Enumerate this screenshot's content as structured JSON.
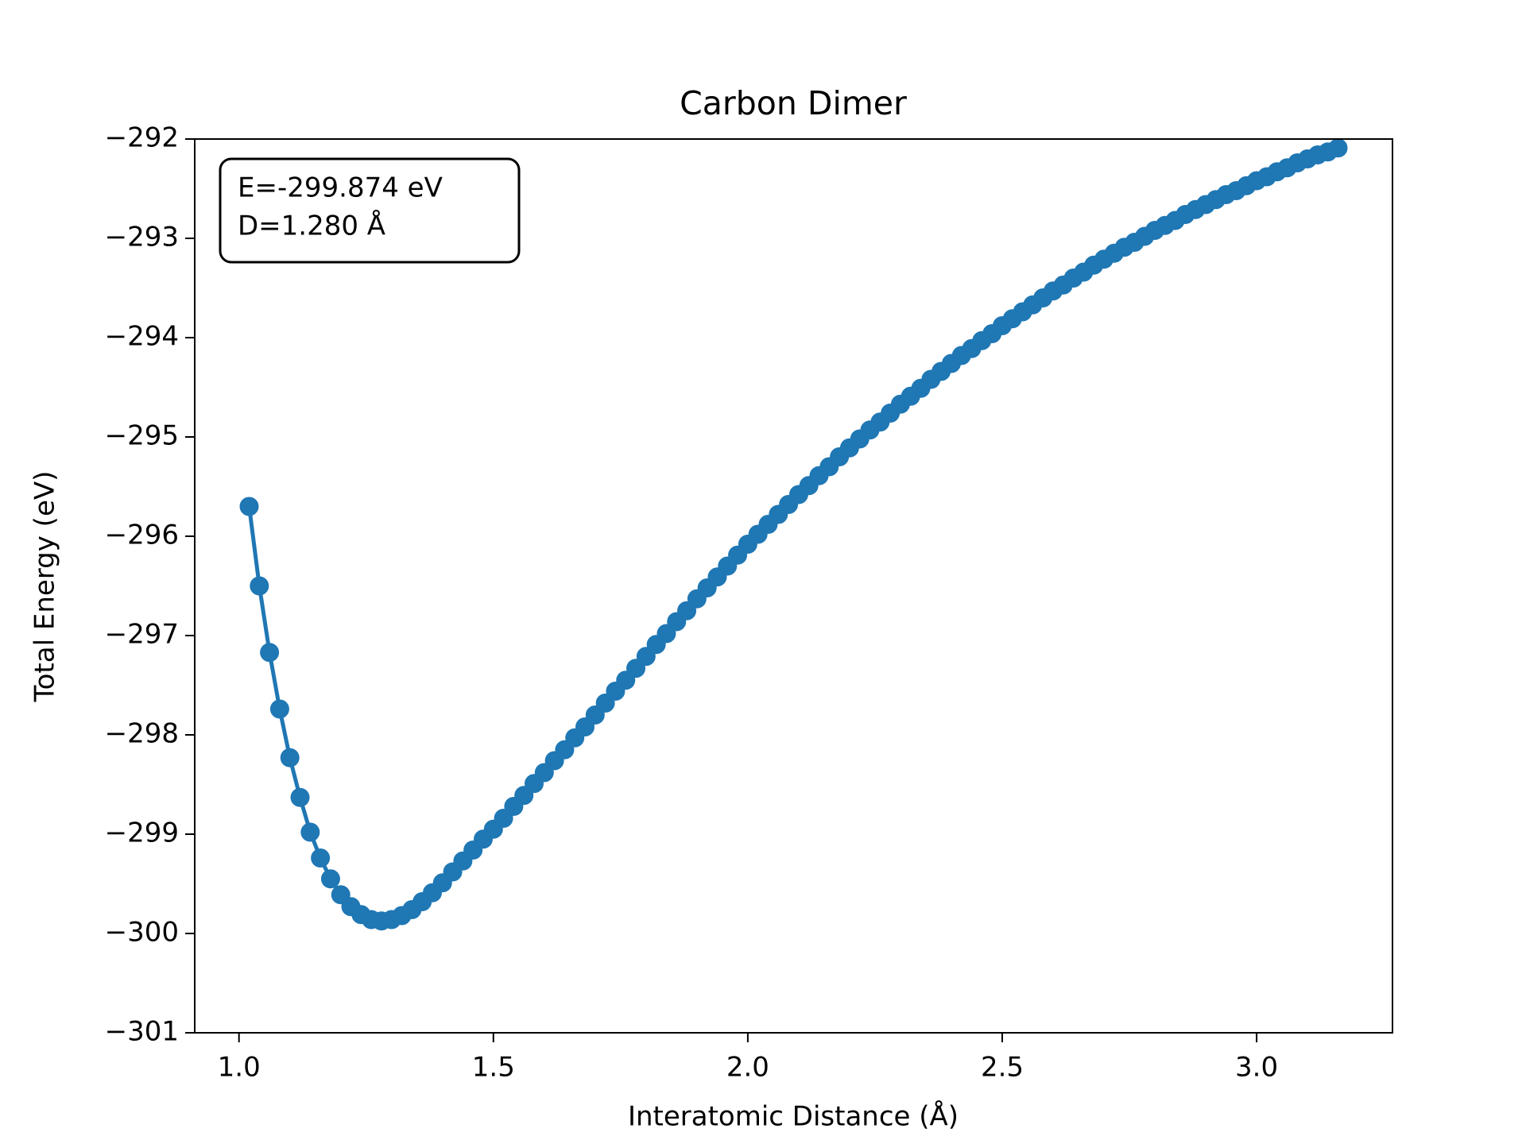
{
  "chart_data": {
    "type": "line",
    "title": "Carbon Dimer",
    "xlabel": "Interatomic Distance (Å)",
    "ylabel": "Total Energy (eV)",
    "annotation": [
      "E=-299.874 eV",
      "D=1.280 Å"
    ],
    "xlim": [
      0.913,
      3.267
    ],
    "ylim": [
      -301,
      -292
    ],
    "xticks": [
      {
        "value": 1,
        "label": "1.0"
      },
      {
        "value": 1.5,
        "label": "1.5"
      },
      {
        "value": 2,
        "label": "2.0"
      },
      {
        "value": 2.5,
        "label": "2.5"
      },
      {
        "value": 3,
        "label": "3.0"
      }
    ],
    "yticks": [
      {
        "value": -301,
        "label": "−301"
      },
      {
        "value": -300,
        "label": "−300"
      },
      {
        "value": -299,
        "label": "−299"
      },
      {
        "value": -298,
        "label": "−298"
      },
      {
        "value": -297,
        "label": "−297"
      },
      {
        "value": -296,
        "label": "−296"
      },
      {
        "value": -295,
        "label": "−295"
      },
      {
        "value": -294,
        "label": "−294"
      },
      {
        "value": -293,
        "label": "−293"
      },
      {
        "value": -292,
        "label": "−292"
      }
    ],
    "grid": false,
    "x": [
      1.02,
      1.04,
      1.06,
      1.08,
      1.1,
      1.12,
      1.14,
      1.16,
      1.18,
      1.2,
      1.22,
      1.24,
      1.26,
      1.28,
      1.3,
      1.32,
      1.34,
      1.36,
      1.38,
      1.4,
      1.42,
      1.44,
      1.46,
      1.48,
      1.5,
      1.52,
      1.54,
      1.56,
      1.58,
      1.6,
      1.62,
      1.64,
      1.66,
      1.68,
      1.7,
      1.72,
      1.74,
      1.76,
      1.78,
      1.8,
      1.82,
      1.84,
      1.86,
      1.88,
      1.9,
      1.92,
      1.94,
      1.96,
      1.98,
      2.0,
      2.02,
      2.04,
      2.06,
      2.08,
      2.1,
      2.12,
      2.14,
      2.16,
      2.18,
      2.2,
      2.22,
      2.24,
      2.26,
      2.28,
      2.3,
      2.32,
      2.34,
      2.36,
      2.38,
      2.4,
      2.42,
      2.44,
      2.46,
      2.48,
      2.5,
      2.52,
      2.54,
      2.56,
      2.58,
      2.6,
      2.62,
      2.64,
      2.66,
      2.68,
      2.7,
      2.72,
      2.74,
      2.76,
      2.78,
      2.8,
      2.82,
      2.84,
      2.86,
      2.88,
      2.9,
      2.92,
      2.94,
      2.96,
      2.98,
      3.0,
      3.02,
      3.04,
      3.06,
      3.08,
      3.1,
      3.12,
      3.14,
      3.16
    ],
    "series": [
      {
        "color": "#1f77b4",
        "values": [
          -295.7,
          -296.5,
          -297.17,
          -297.74,
          -298.23,
          -298.63,
          -298.98,
          -299.24,
          -299.45,
          -299.61,
          -299.73,
          -299.81,
          -299.86,
          -299.874,
          -299.86,
          -299.82,
          -299.76,
          -299.68,
          -299.59,
          -299.49,
          -299.38,
          -299.27,
          -299.16,
          -299.05,
          -298.95,
          -298.84,
          -298.72,
          -298.61,
          -298.49,
          -298.38,
          -298.26,
          -298.15,
          -298.03,
          -297.92,
          -297.8,
          -297.68,
          -297.56,
          -297.45,
          -297.33,
          -297.21,
          -297.09,
          -296.98,
          -296.86,
          -296.75,
          -296.63,
          -296.52,
          -296.41,
          -296.3,
          -296.19,
          -296.08,
          -295.98,
          -295.88,
          -295.78,
          -295.68,
          -295.58,
          -295.49,
          -295.39,
          -295.3,
          -295.2,
          -295.11,
          -295.02,
          -294.93,
          -294.85,
          -294.76,
          -294.67,
          -294.59,
          -294.51,
          -294.42,
          -294.34,
          -294.26,
          -294.18,
          -294.11,
          -294.03,
          -293.96,
          -293.88,
          -293.81,
          -293.74,
          -293.67,
          -293.6,
          -293.53,
          -293.47,
          -293.4,
          -293.34,
          -293.27,
          -293.21,
          -293.15,
          -293.09,
          -293.04,
          -292.98,
          -292.92,
          -292.87,
          -292.82,
          -292.76,
          -292.71,
          -292.66,
          -292.61,
          -292.56,
          -292.52,
          -292.47,
          -292.42,
          -292.38,
          -292.33,
          -292.29,
          -292.24,
          -292.2,
          -292.16,
          -292.13,
          -292.09
        ]
      }
    ]
  }
}
